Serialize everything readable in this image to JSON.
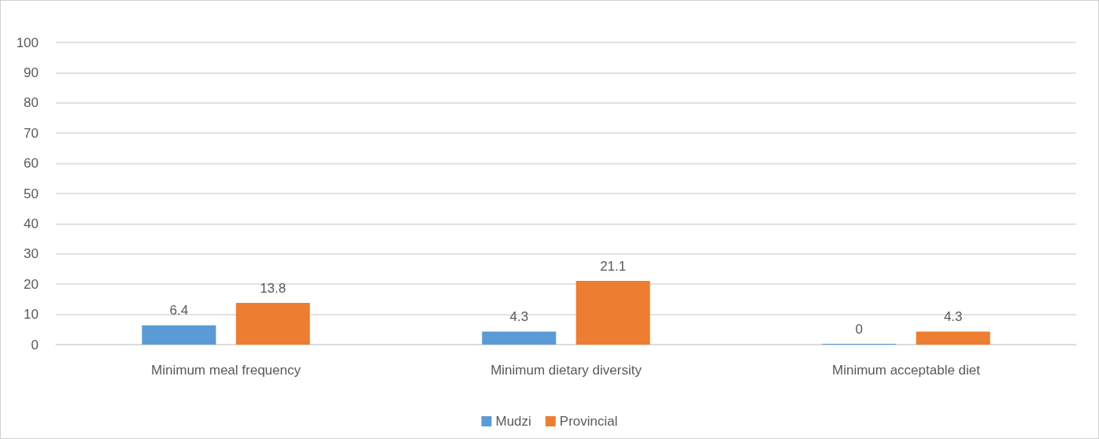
{
  "chart_data": {
    "type": "bar",
    "categories": [
      "Minimum meal frequency",
      "Minimum dietary diversity",
      "Minimum acceptable diet"
    ],
    "series": [
      {
        "name": "Mudzi",
        "color": "#5b9bd5",
        "values": [
          6.4,
          4.3,
          0
        ]
      },
      {
        "name": "Provincial",
        "color": "#ed7d31",
        "values": [
          13.8,
          21.1,
          4.3
        ]
      }
    ],
    "ylim": [
      0,
      100
    ],
    "yticks": [
      0,
      10,
      20,
      30,
      40,
      50,
      60,
      70,
      80,
      90,
      100
    ],
    "grid": "y",
    "legend": "bottom",
    "data_labels": true
  }
}
